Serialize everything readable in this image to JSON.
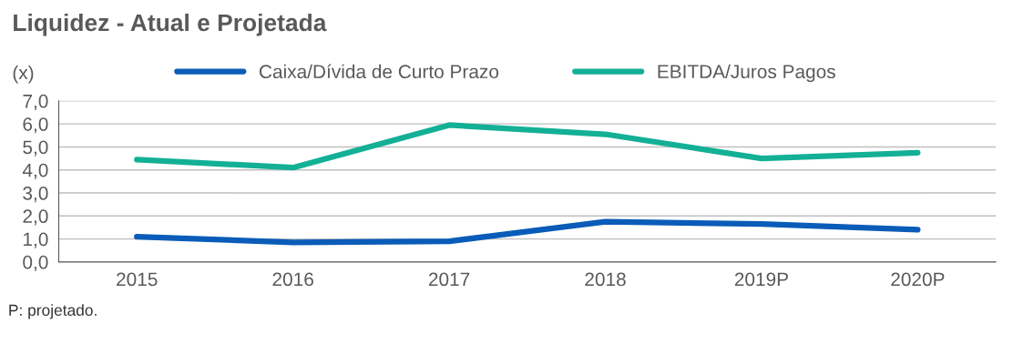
{
  "chart_data": {
    "type": "line",
    "title": "Liquidez - Atual e Projetada",
    "ylabel": "(x)",
    "categories": [
      "2015",
      "2016",
      "2017",
      "2018",
      "2019P",
      "2020P"
    ],
    "series": [
      {
        "name": "Caixa/Dívida de Curto Prazo",
        "color": "#0a5cb8",
        "values": [
          1.1,
          0.85,
          0.9,
          1.75,
          1.65,
          1.4
        ]
      },
      {
        "name": "EBITDA/Juros Pagos",
        "color": "#13b096",
        "values": [
          4.45,
          4.1,
          5.95,
          5.55,
          4.5,
          4.75
        ]
      }
    ],
    "ylim": [
      0,
      7
    ],
    "yticks": [
      {
        "value": 0,
        "label": "0,0"
      },
      {
        "value": 1,
        "label": "1,0"
      },
      {
        "value": 2,
        "label": "2,0"
      },
      {
        "value": 3,
        "label": "3,0"
      },
      {
        "value": 4,
        "label": "4,0"
      },
      {
        "value": 5,
        "label": "5,0"
      },
      {
        "value": 6,
        "label": "6,0"
      },
      {
        "value": 7,
        "label": "7,0"
      }
    ],
    "grid": "y",
    "legend": "top",
    "marker": "none",
    "line_style": "solid",
    "annotations": [
      "P: projetado."
    ]
  }
}
